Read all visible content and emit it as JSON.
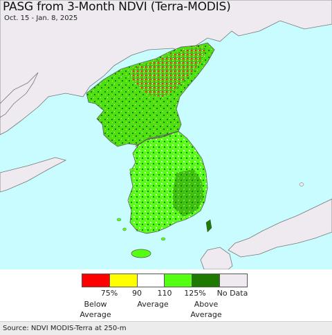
{
  "title": "PASG from 3-Month NDVI (Terra-MODIS)",
  "subtitle": "Oct. 15 - Jan. 8, 2025",
  "colors": {
    "ocean": "#c8fcff",
    "land_no_data": "#eeeaef",
    "border_line": "#666666",
    "below_75": "#ff0000",
    "p75_90": "#ffff00",
    "p90_110": "#ffffff",
    "p110_125": "#55ff11",
    "above_125": "#1e7a00",
    "no_data": "#eeeaef"
  },
  "legend": {
    "swatches": [
      {
        "name": "below-75",
        "color": "#ff0000"
      },
      {
        "name": "75-90",
        "color": "#ffff00"
      },
      {
        "name": "90-110",
        "color": "#ffffff"
      },
      {
        "name": "110-125",
        "color": "#55ff11"
      },
      {
        "name": "above-125",
        "color": "#1e7a00"
      },
      {
        "name": "no-data",
        "color": "#eeeaef"
      }
    ],
    "ticks": [
      "75%",
      "90",
      "110",
      "125%",
      "No Data"
    ],
    "below_label": "Below\nAverage",
    "average_label": "Average",
    "above_label": "Above\nAverage"
  },
  "source": "Source: NDVI MODIS-Terra at 250-m"
}
